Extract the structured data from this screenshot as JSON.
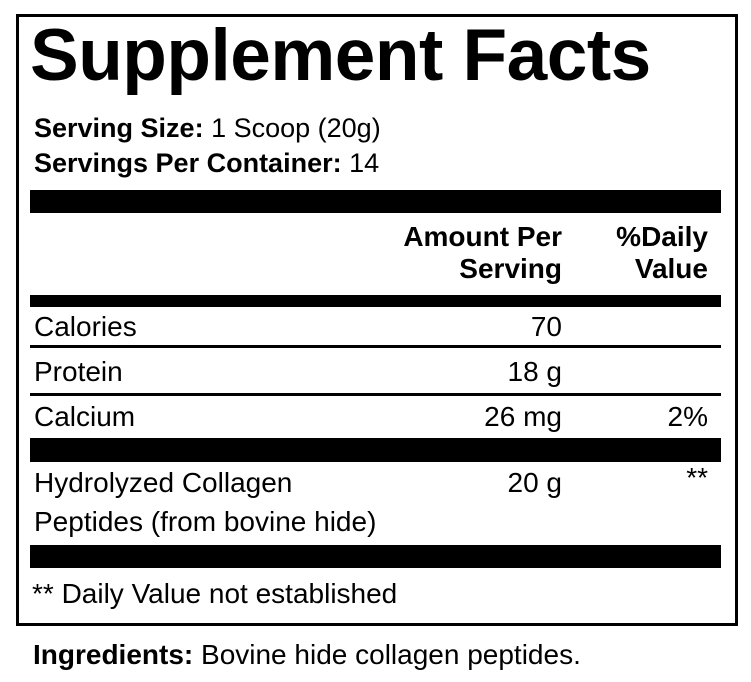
{
  "title": "Supplement Facts",
  "serving_size": {
    "label": "Serving Size:",
    "value": "1 Scoop (20g)"
  },
  "servings_per_container": {
    "label": "Servings Per Container:",
    "value": "14"
  },
  "header": {
    "amount_line1": "Amount Per",
    "amount_line2": "Serving",
    "dv_line1": "%Daily",
    "dv_line2": "Value"
  },
  "rows": [
    {
      "name": "Calories",
      "amount": "70",
      "dv": ""
    },
    {
      "name": "Protein",
      "amount": "18 g",
      "dv": ""
    },
    {
      "name": "Calcium",
      "amount": "26 mg",
      "dv": "2%"
    }
  ],
  "collagen": {
    "name_line1": "Hydrolyzed Collagen",
    "name_line2": "Peptides (from bovine hide)",
    "amount": "20 g",
    "dv": "**"
  },
  "footnote": "** Daily Value not established",
  "ingredients": {
    "label": "Ingredients:",
    "value": "Bovine hide collagen peptides."
  }
}
